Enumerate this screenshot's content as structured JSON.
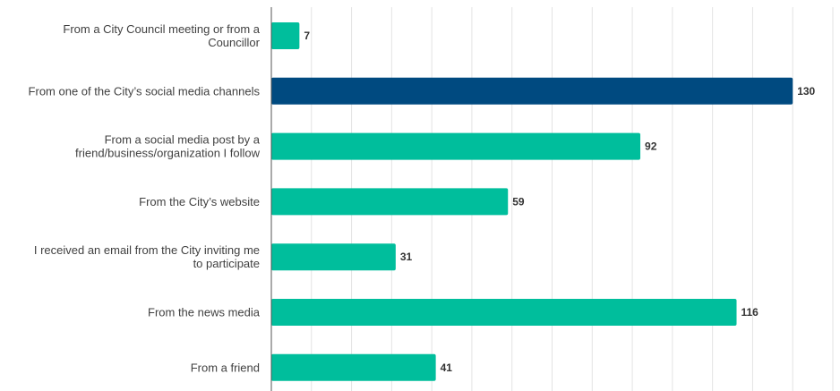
{
  "chart_data": {
    "type": "bar",
    "orientation": "horizontal",
    "title": "",
    "xlabel": "",
    "ylabel": "",
    "grid": true,
    "legend": "none",
    "xlim": [
      0,
      140
    ],
    "categories": [
      "From a City Council meeting or from a Councillor",
      "From one of the City’s social media channels",
      "From a social media post by a friend/business/organization I follow",
      "From the City’s website",
      "I received an email from the City inviting me to participate",
      "From the news media",
      "From a friend"
    ],
    "values": [
      7,
      130,
      92,
      59,
      31,
      116,
      41
    ],
    "colors": {
      "bar": "#00be9c",
      "highlight": "#004a80"
    },
    "highlight_index": 1
  }
}
